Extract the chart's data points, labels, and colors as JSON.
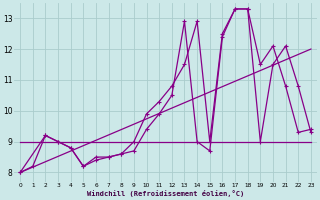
{
  "background_color": "#cce8e8",
  "grid_color": "#aacccc",
  "line_color": "#880088",
  "xlabel": "Windchill (Refroidissement éolien,°C)",
  "xlim": [
    -0.5,
    23.5
  ],
  "ylim": [
    7.7,
    13.5
  ],
  "yticks": [
    8,
    9,
    10,
    11,
    12,
    13
  ],
  "xticks": [
    0,
    1,
    2,
    3,
    4,
    5,
    6,
    7,
    8,
    9,
    10,
    11,
    12,
    13,
    14,
    15,
    16,
    17,
    18,
    19,
    20,
    21,
    22,
    23
  ],
  "series1_x": [
    0,
    1,
    2,
    3,
    4,
    5,
    6,
    7,
    8,
    9,
    10,
    11,
    12,
    13,
    14,
    15,
    16,
    17,
    18,
    19,
    20,
    21,
    22,
    23
  ],
  "series1_y": [
    8.0,
    8.2,
    9.2,
    9.0,
    8.8,
    8.2,
    8.4,
    8.5,
    8.6,
    8.7,
    9.4,
    9.9,
    10.5,
    12.9,
    9.0,
    8.7,
    12.4,
    13.3,
    13.3,
    11.5,
    12.1,
    10.8,
    9.3,
    9.4
  ],
  "series2_x": [
    0,
    2,
    3,
    4,
    5,
    6,
    7,
    8,
    9,
    10,
    11,
    12,
    13,
    14,
    15,
    16,
    17,
    18,
    19,
    20,
    21,
    22,
    23
  ],
  "series2_y": [
    8.0,
    9.2,
    9.0,
    8.8,
    8.2,
    8.5,
    8.5,
    8.6,
    9.0,
    9.9,
    10.3,
    10.8,
    11.5,
    12.9,
    9.0,
    12.5,
    13.3,
    13.3,
    9.0,
    11.5,
    12.1,
    10.8,
    9.3
  ],
  "ref_line1_x": [
    0,
    23
  ],
  "ref_line1_y": [
    9.0,
    9.0
  ],
  "ref_line2_x": [
    0,
    23
  ],
  "ref_line2_y": [
    8.0,
    12.0
  ]
}
